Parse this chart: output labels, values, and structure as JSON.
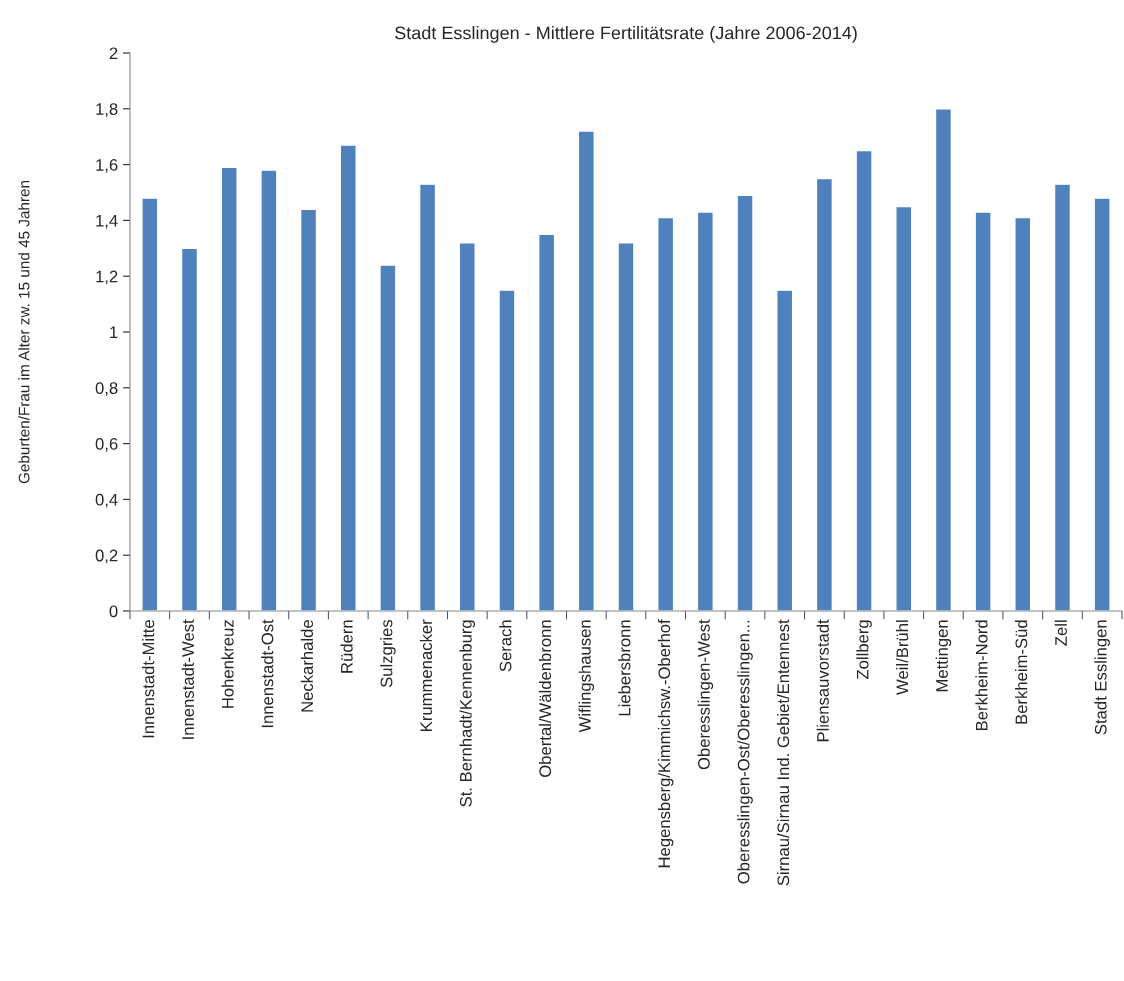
{
  "chart_data": {
    "type": "bar",
    "title": "Stadt Esslingen - Mittlere Fertilitätsrate (Jahre 2006-2014)",
    "ylabel": "Geburten/Frau im Alter zw. 15 und 45 Jahren",
    "categories": [
      "Innenstadt-Mitte",
      "Innenstadt-West",
      "Hohenkreuz",
      "Innenstadt-Ost",
      "Neckarhalde",
      "Rüdern",
      "Sulzgries",
      "Krummenacker",
      "St. Bernhadt/Kennenburg",
      "Serach",
      "Obertal/Wäldenbronn",
      "Wiflingshausen",
      "Liebersbronn",
      "Hegensberg/Kimmichsw.-Oberhof",
      "Oberesslingen-West",
      "Oberesslingen-Ost/Oberesslingen...",
      "Sirnau/Sirnau Ind. Gebiet/Entennest",
      "Pliensauvorstadt",
      "Zollberg",
      "Weil/Brühl",
      "Mettingen",
      "Berkheim-Nord",
      "Berkheim-Süd",
      "Zell",
      "Stadt Esslingen"
    ],
    "values": [
      1.48,
      1.3,
      1.59,
      1.58,
      1.44,
      1.67,
      1.24,
      1.53,
      1.32,
      1.15,
      1.35,
      1.72,
      1.32,
      1.41,
      1.43,
      1.49,
      1.15,
      1.55,
      1.65,
      1.45,
      1.8,
      1.43,
      1.41,
      1.53,
      1.48
    ],
    "color": "#4f81bd",
    "ylim": [
      0,
      2
    ],
    "yticks": [
      0,
      {
        "value": 0.2,
        "label": "0,2"
      },
      {
        "value": 0.4,
        "label": "0,4"
      },
      {
        "value": 0.6,
        "label": "0,6"
      },
      {
        "value": 0.8,
        "label": "0,8"
      },
      1,
      {
        "value": 1.2,
        "label": "1,2"
      },
      {
        "value": 1.4,
        "label": "1,4"
      },
      {
        "value": 1.6,
        "label": "1,6"
      },
      {
        "value": 1.8,
        "label": "1,8"
      },
      2
    ],
    "grid": false
  }
}
